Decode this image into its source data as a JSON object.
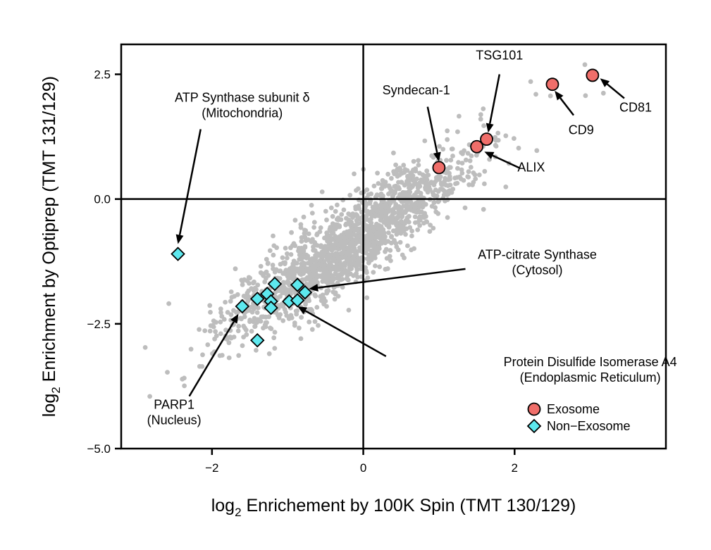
{
  "chart_data": {
    "type": "scatter",
    "xlabel": {
      "prefix": "log",
      "sub": "2",
      "text": " Enrichement by 100K Spin (TMT 130/129)"
    },
    "ylabel": {
      "prefix": "log",
      "sub": "2",
      "text": " Enrichment by Optiprep (TMT 131/129)"
    },
    "xlim": [
      -3.2,
      4.0
    ],
    "ylim": [
      -5.0,
      3.1
    ],
    "xticks": [
      {
        "value": -2,
        "label": "−2"
      },
      {
        "value": 0,
        "label": "0"
      },
      {
        "value": 2,
        "label": "2"
      }
    ],
    "yticks": [
      {
        "value": 2.5,
        "label": "2.5"
      },
      {
        "value": 0,
        "label": "0.0"
      },
      {
        "value": -2.5,
        "label": "−2.5"
      },
      {
        "value": -5,
        "label": "−5.0"
      }
    ],
    "reference_lines": {
      "x": 0,
      "y": 0
    },
    "background_color": "#bdbdbd",
    "series": [
      {
        "name": "Exosome",
        "marker": "circle",
        "color": "#f06e6a",
        "points": [
          {
            "x": 1.0,
            "y": 0.63
          },
          {
            "x": 1.5,
            "y": 1.05
          },
          {
            "x": 1.63,
            "y": 1.2
          },
          {
            "x": 2.5,
            "y": 2.3
          },
          {
            "x": 3.03,
            "y": 2.48
          }
        ]
      },
      {
        "name": "Non−Exosome",
        "marker": "diamond",
        "color": "#5de8ee",
        "points": [
          {
            "x": -2.45,
            "y": -1.1
          },
          {
            "x": -1.6,
            "y": -2.15
          },
          {
            "x": -1.4,
            "y": -2.0
          },
          {
            "x": -1.4,
            "y": -2.83
          },
          {
            "x": -1.27,
            "y": -1.9
          },
          {
            "x": -1.17,
            "y": -1.7
          },
          {
            "x": -1.22,
            "y": -2.05
          },
          {
            "x": -1.22,
            "y": -2.18
          },
          {
            "x": -0.98,
            "y": -2.05
          },
          {
            "x": -0.87,
            "y": -1.72
          },
          {
            "x": -0.87,
            "y": -2.03
          },
          {
            "x": -0.77,
            "y": -1.87
          }
        ]
      }
    ],
    "annotations": [
      {
        "lines": [
          "TSG101"
        ],
        "text_at": [
          1.8,
          2.8
        ],
        "arrow_from": [
          1.8,
          2.5
        ],
        "arrow_to": [
          1.65,
          1.33
        ]
      },
      {
        "lines": [
          "Syndecan-1"
        ],
        "text_at": [
          0.7,
          2.1
        ],
        "arrow_from": [
          0.85,
          1.85
        ],
        "arrow_to": [
          1.0,
          0.75
        ]
      },
      {
        "lines": [
          "ALIX"
        ],
        "text_at": [
          2.22,
          0.55
        ],
        "arrow_from": [
          2.07,
          0.62
        ],
        "arrow_to": [
          1.6,
          0.95
        ]
      },
      {
        "lines": [
          "CD9"
        ],
        "text_at": [
          2.88,
          1.3
        ],
        "arrow_from": [
          2.78,
          1.68
        ],
        "arrow_to": [
          2.53,
          2.17
        ]
      },
      {
        "lines": [
          "CD81"
        ],
        "text_at": [
          3.6,
          1.75
        ],
        "arrow_from": [
          3.45,
          2.02
        ],
        "arrow_to": [
          3.13,
          2.42
        ]
      },
      {
        "lines": [
          "ATP Synthase subunit δ",
          "(Mitochondria)"
        ],
        "text_at": [
          -1.6,
          1.95
        ],
        "arrow_from": [
          -2.15,
          1.4
        ],
        "arrow_to": [
          -2.45,
          -0.9
        ]
      },
      {
        "lines": [
          "ATP-citrate Synthase",
          "(Cytosol)"
        ],
        "text_at": [
          2.3,
          -1.2
        ],
        "arrow_from": [
          1.35,
          -1.4
        ],
        "arrow_to": [
          -0.72,
          -1.8
        ]
      },
      {
        "lines": [
          "Protein Disulfide Isomerase A4",
          "(Endoplasmic Reticulum)"
        ],
        "text_at": [
          3.0,
          -3.35
        ],
        "arrow_from": [
          0.3,
          -3.15
        ],
        "arrow_to": [
          -0.87,
          -2.15
        ]
      },
      {
        "lines": [
          "PARP1",
          "(Nucleus)"
        ],
        "text_at": [
          -2.5,
          -4.2
        ],
        "arrow_from": [
          -2.3,
          -3.95
        ],
        "arrow_to": [
          -1.65,
          -2.3
        ]
      }
    ],
    "legend": {
      "position": "bottom-right",
      "entries": [
        "Exosome",
        "Non−Exosome"
      ]
    },
    "grid": false
  }
}
